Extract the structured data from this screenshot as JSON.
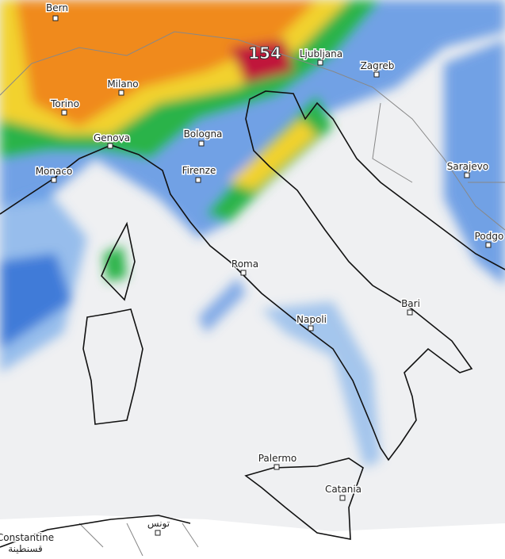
{
  "max_value": 154,
  "cities": [
    "Bern",
    "Milano",
    "Torino",
    "Genova",
    "Monaco",
    "Bologna",
    "Firenze",
    "Roma",
    "Napoli",
    "Bari",
    "Palermo",
    "Catania",
    "Ljubljana",
    "Zagreb",
    "Sarajevo",
    "Podgo",
    "Constantine",
    "قسنطينة",
    "تونس"
  ]
}
